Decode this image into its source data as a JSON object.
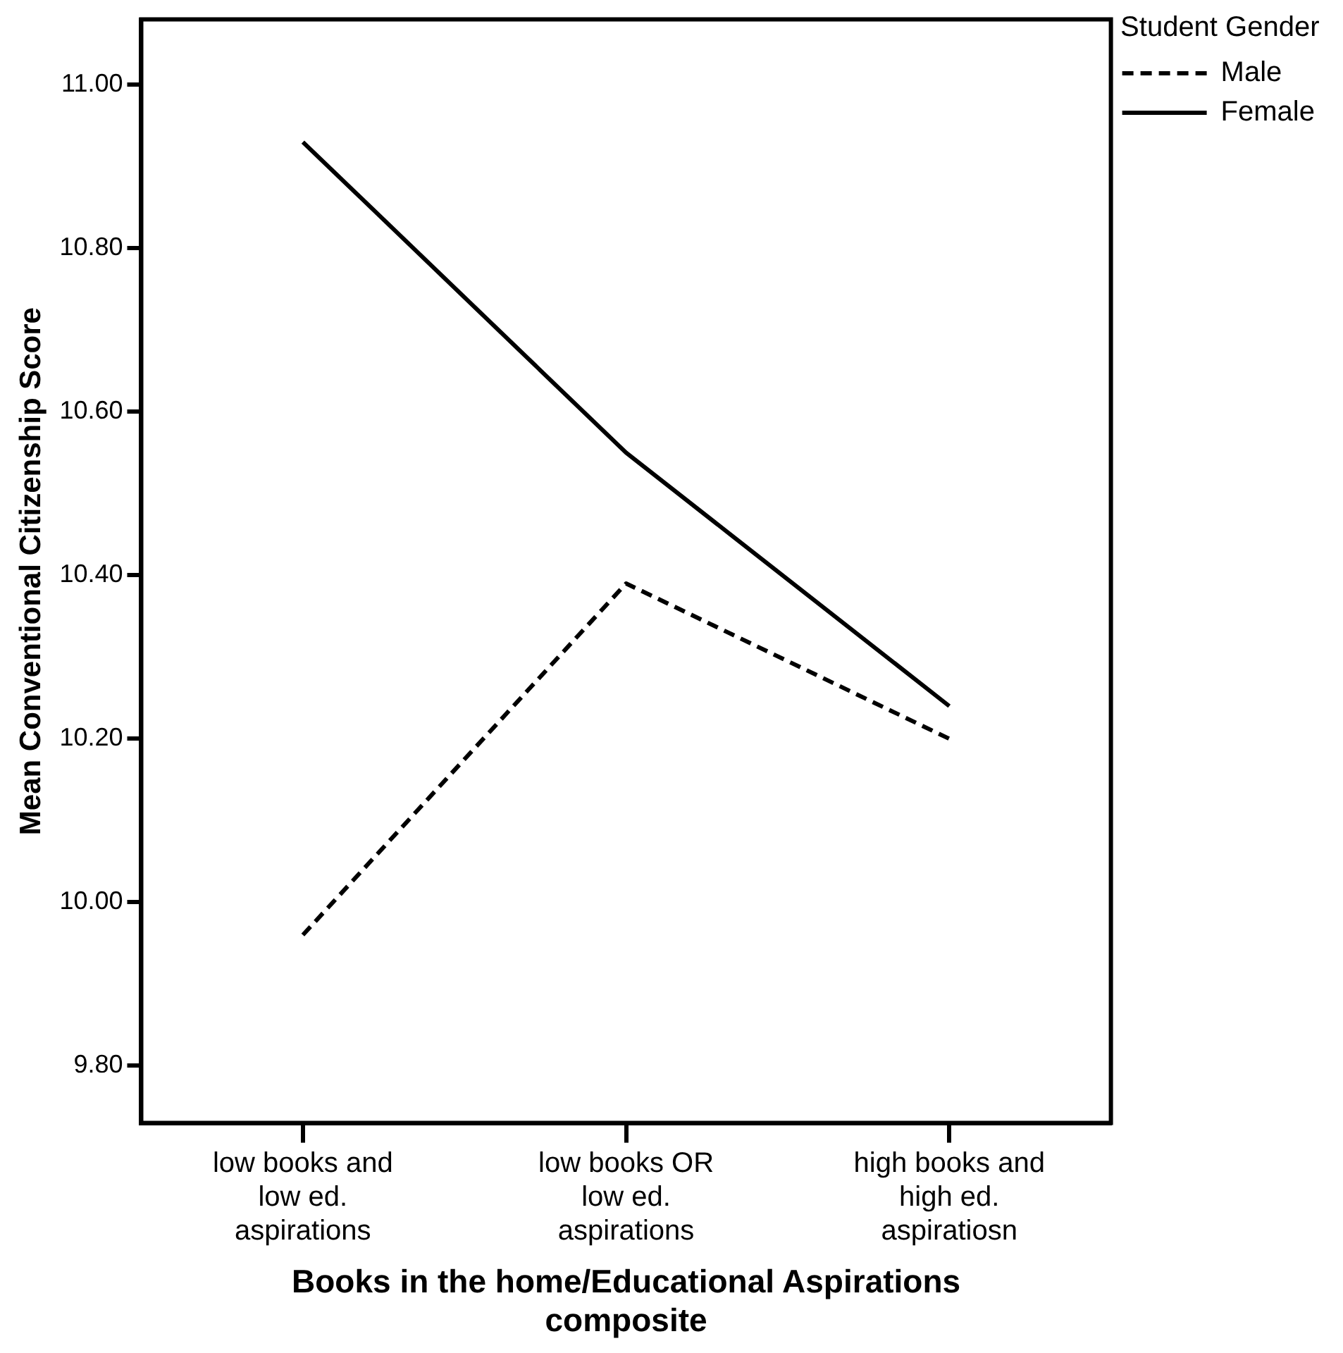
{
  "chart_data": {
    "type": "line",
    "xlabel": "Books in the home/Educational Aspirations composite",
    "ylabel": "Mean Conventional Citizenship Score",
    "legend_title": "Student Gender",
    "categories": [
      "low books and low ed. aspirations",
      "low books OR low ed. aspirations",
      "high books and high ed. aspiratiosn"
    ],
    "series": [
      {
        "name": "Male",
        "color": "#000000",
        "line_style": "dashed",
        "values": [
          9.96,
          10.39,
          10.2
        ]
      },
      {
        "name": "Female",
        "color": "#000000",
        "line_style": "solid",
        "values": [
          10.93,
          10.55,
          10.24
        ]
      }
    ],
    "ylim": [
      9.73,
      11.08
    ],
    "yticks": [
      {
        "value": 9.8,
        "label": "9.80"
      },
      {
        "value": 10,
        "label": "10.00"
      },
      {
        "value": 10.2,
        "label": "10.20"
      },
      {
        "value": 10.4,
        "label": "10.40"
      },
      {
        "value": 10.6,
        "label": "10.60"
      },
      {
        "value": 10.8,
        "label": "10.80"
      },
      {
        "value": 11,
        "label": "11.00"
      }
    ],
    "grid": false,
    "legend": "top right",
    "marker": "none"
  }
}
